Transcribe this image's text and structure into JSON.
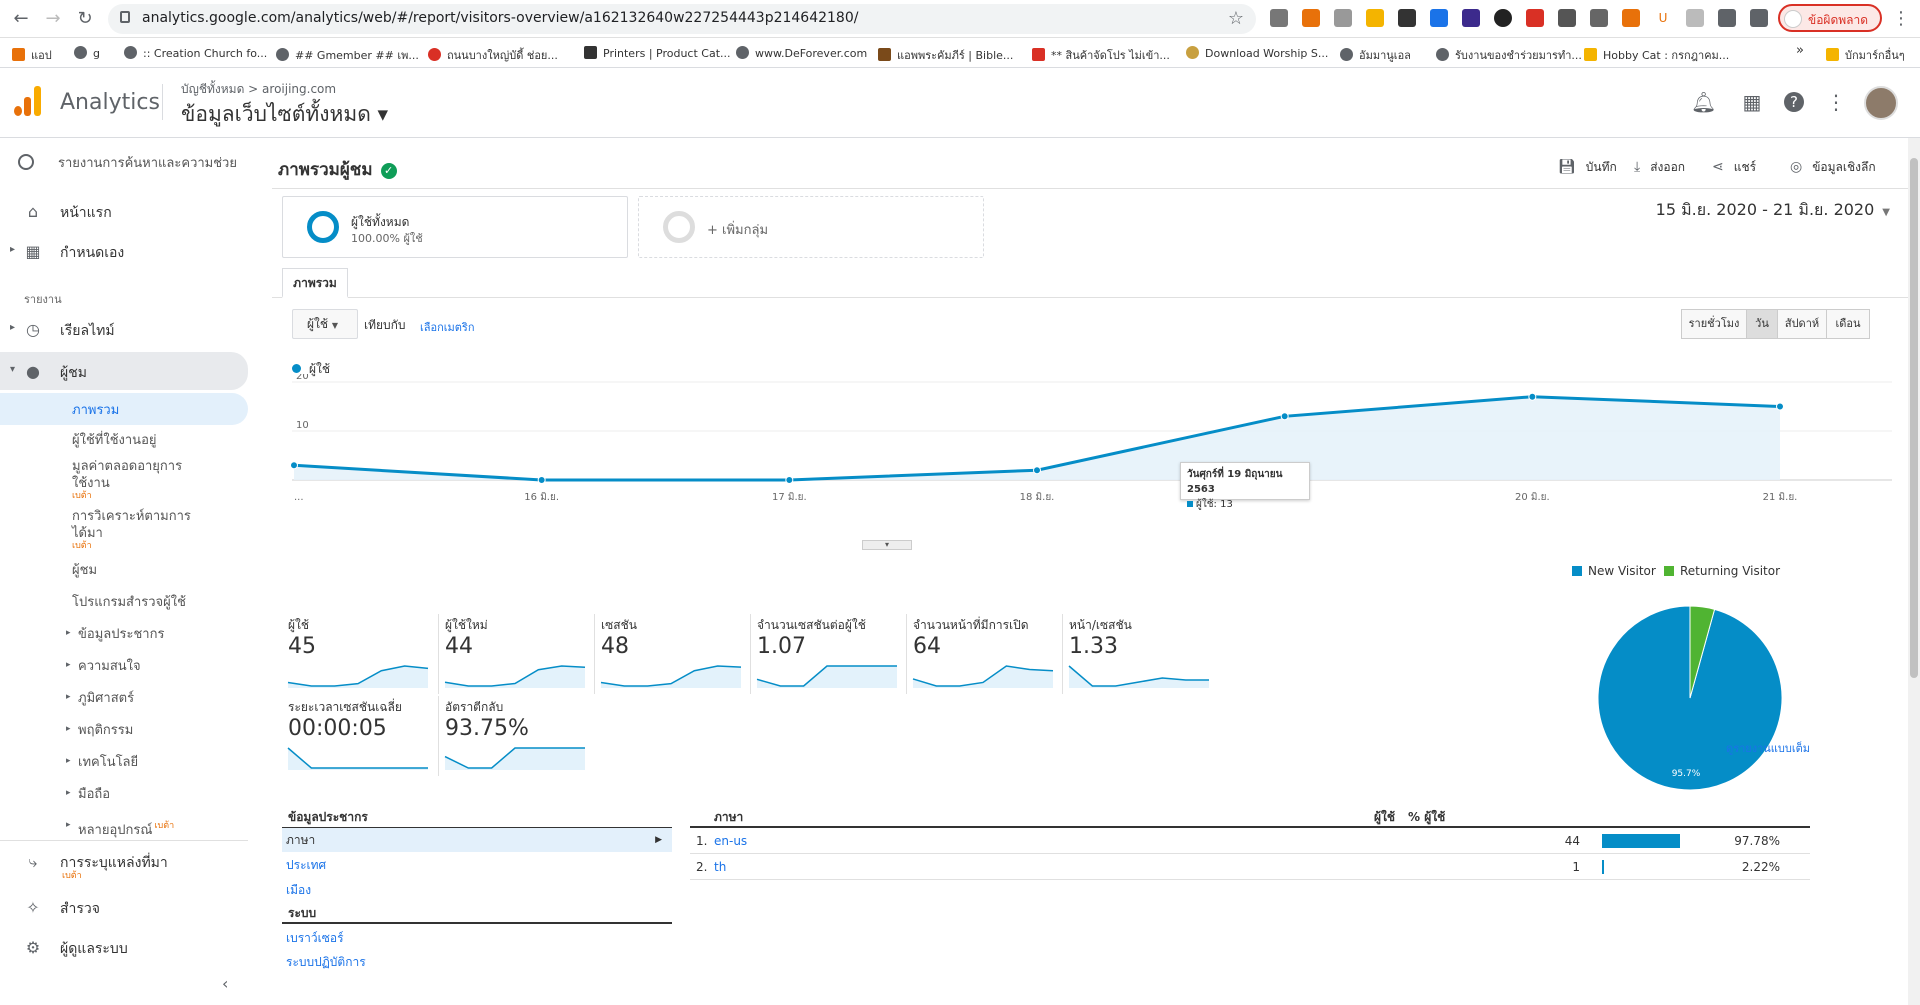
{
  "browser": {
    "url": "analytics.google.com/analytics/web/#/report/visitors-overview/a162132640w227254443p214642180/",
    "profile_label": "ข้อผิดพลาด",
    "bookmarks": [
      "แอป",
      "g",
      ":: Creation Church fo...",
      "## Gmember ## เพ...",
      "ถนนบางใหญ่บัดี้ ช่อย...",
      "Printers | Product Cat...",
      "www.DeForever.com",
      "แอพพระคัมภีร์ | Bible...",
      "** สินค้าจัดโปร ไม่เข้า...",
      "Download Worship S...",
      "อัมมานูเอล",
      "รับงานของชำร่วยมารทำ...",
      "Hobby Cat : กรกฎาคม..."
    ],
    "bookmarks_more": "»",
    "bookmarks_folder": "บักมาร์กอื่นๆ"
  },
  "header": {
    "app_name": "Analytics",
    "account_crumb": "บัญชีทั้งหมด > aroijing.com",
    "view_name": "ข้อมูลเว็บไซต์ทั้งหมด ▾"
  },
  "sidebar": {
    "search_label": "รายงานการค้นหาและความช่วย",
    "home": "หน้าแรก",
    "customize": "กำหนดเอง",
    "reports_section": "รายงาน",
    "realtime": "เรียลไทม์",
    "audience": "ผู้ชม",
    "audience_items": [
      {
        "label": "ภาพรวม"
      },
      {
        "label": "ผู้ใช้ที่ใช้งานอยู่"
      },
      {
        "label": "มูลค่าตลอดอายุการใช้งาน",
        "line2": "ใช้งาน",
        "line1": "มูลค่าตลอดอายุการ",
        "beta": "เบต้า"
      },
      {
        "line1": "การวิเคราะห์ตามการ",
        "line2": "ได้มา",
        "beta": "เบต้า"
      },
      {
        "label": "ผู้ชม"
      },
      {
        "label": "โปรแกรมสำรวจผู้ใช้"
      },
      {
        "label": "ข้อมูลประชากร"
      },
      {
        "label": "ความสนใจ"
      },
      {
        "label": "ภูมิศาสตร์"
      },
      {
        "label": "พฤติกรรม"
      },
      {
        "label": "เทคโนโลยี"
      },
      {
        "label": "มือถือ"
      },
      {
        "label": "หลายอุปกรณ์",
        "beta": "เบต้า"
      }
    ],
    "attribution": "การระบุแหล่งที่มา",
    "attribution_beta": "เบต้า",
    "discover": "สำรวจ",
    "admin": "ผู้ดูแลระบบ"
  },
  "report": {
    "title": "ภาพรวมผู้ชม",
    "actions": {
      "save": "บันทึก",
      "export": "ส่งออก",
      "share": "แชร์",
      "insights": "ข้อมูลเชิงลึก"
    },
    "segment_all": {
      "name": "ผู้ใช้ทั้งหมด",
      "pct": "100.00% ผู้ใช้"
    },
    "segment_add": "+ เพิ่มกลุ่ม",
    "date_range": "15 มิ.ย. 2020 - 21 มิ.ย. 2020",
    "tab": "ภาพรวม",
    "metric_select": "ผู้ใช้",
    "compare_label": "เทียบกับ",
    "pick_metric": "เลือกเมตริก",
    "granularity": [
      "รายชั่วโมง",
      "วัน",
      "สัปดาห์",
      "เดือน"
    ],
    "legend_label": "ผู้ใช้",
    "tooltip": {
      "date": "วันศุกร์ที่ 19 มิถุนายน 2563",
      "value": "ผู้ใช้: 13"
    }
  },
  "chart_data": {
    "type": "area",
    "title": "",
    "series": [
      {
        "name": "ผู้ใช้",
        "values": [
          3,
          0,
          0,
          2,
          13,
          17,
          15
        ]
      }
    ],
    "categories": [
      "15 มิ.ย.",
      "16 มิ.ย.",
      "17 มิ.ย.",
      "18 มิ.ย.",
      "19 มิ.ย.",
      "20 มิ.ย.",
      "21 มิ.ย."
    ],
    "tick_labels": [
      "...",
      "16 มิ.ย.",
      "17 มิ.ย.",
      "18 มิ.ย.",
      "19 มิ.ย.",
      "20 มิ.ย.",
      "21 มิ.ย."
    ],
    "yticks": [
      10,
      20
    ],
    "ylim": [
      0,
      20
    ],
    "color": "#058dc7"
  },
  "scorecards": [
    {
      "label": "ผู้ใช้",
      "value": "45",
      "spark": [
        3,
        0,
        0,
        2,
        13,
        17,
        15
      ]
    },
    {
      "label": "ผู้ใช้ใหม่",
      "value": "44",
      "spark": [
        3,
        0,
        0,
        2,
        13,
        16,
        15
      ]
    },
    {
      "label": "เซสชัน",
      "value": "48",
      "spark": [
        3,
        0,
        0,
        2,
        13,
        17,
        16
      ]
    },
    {
      "label": "จำนวนเซสชันต่อผู้ใช้",
      "value": "1.07",
      "spark": [
        1.1,
        1,
        1,
        1.3,
        1.3,
        1.3,
        1.3
      ]
    },
    {
      "label": "จำนวนหน้าที่มีการเปิด",
      "value": "64",
      "spark": [
        6,
        0,
        0,
        3,
        17,
        14,
        13
      ]
    },
    {
      "label": "หน้า/เซสชัน",
      "value": "1.33",
      "spark": [
        2,
        1,
        1,
        1.2,
        1.4,
        1.3,
        1.3
      ]
    },
    {
      "label": "ระยะเวลาเซสชันเฉลี่ย",
      "value": "00:00:05",
      "spark": [
        9,
        1,
        1,
        1,
        1,
        1,
        1
      ]
    },
    {
      "label": "อัตราตีกลับ",
      "value": "93.75%",
      "spark": [
        80,
        60,
        60,
        95,
        95,
        95,
        95
      ]
    }
  ],
  "pie": {
    "legend": [
      {
        "name": "New Visitor",
        "color": "#058dc7"
      },
      {
        "name": "Returning Visitor",
        "color": "#50b432"
      }
    ],
    "values": [
      95.7,
      4.3
    ],
    "label": "95.7%"
  },
  "demographics": {
    "header": "ข้อมูลประชากร",
    "items": [
      "ภาษา",
      "ประเทศ",
      "เมือง"
    ],
    "system_header": "ระบบ",
    "system_items": [
      "เบราว์เซอร์",
      "ระบบปฏิบัติการ"
    ]
  },
  "language_table": {
    "col_name": "ภาษา",
    "col_users": "ผู้ใช้",
    "col_pct": "% ผู้ใช้",
    "rows": [
      {
        "rank": "1.",
        "name": "en-us",
        "users": "44",
        "pct": "97.78%",
        "share": 97.78
      },
      {
        "rank": "2.",
        "name": "th",
        "users": "1",
        "pct": "2.22%",
        "share": 2.22
      }
    ],
    "full_report": "ดูรายงานแบบเต็ม"
  }
}
